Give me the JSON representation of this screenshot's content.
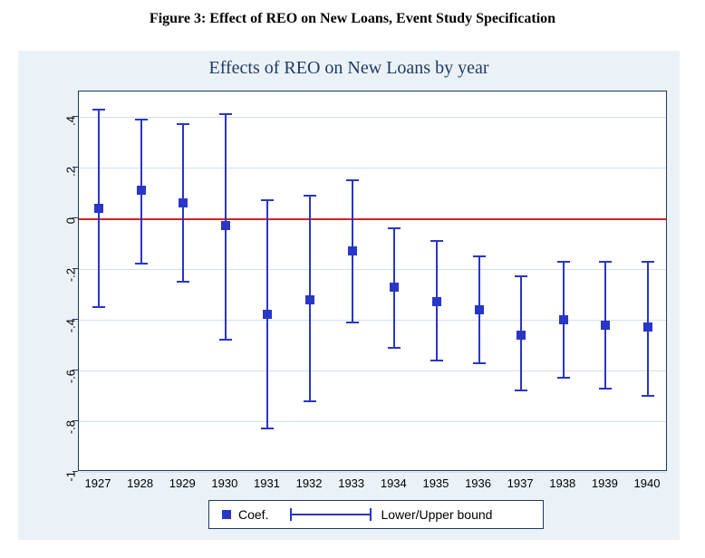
{
  "figure_caption": "Figure 3: Effect of REO on New Loans, Event Study Specification",
  "chart": {
    "type": "event-study-errorbar",
    "title": "Effects of REO on New Loans by year",
    "title_fontsize": 20,
    "title_color": "#1f3a5f",
    "background_color": "#eaf2f8",
    "plot_background_color": "#ffffff",
    "axis_color": "#1f3a5f",
    "grid_color": "#d2e0ec",
    "zero_line_color": "#d02424",
    "ylim": [
      -1.0,
      0.5
    ],
    "yticks": [
      -1.0,
      -0.8,
      -0.6,
      -0.4,
      -0.2,
      0.0,
      0.2,
      0.4
    ],
    "ytick_labels": [
      "-1",
      "-.8",
      "-.6",
      "-.4",
      "-.2",
      "0",
      ".2",
      ".4"
    ],
    "years": [
      1927,
      1928,
      1929,
      1930,
      1931,
      1932,
      1933,
      1934,
      1935,
      1936,
      1937,
      1938,
      1939,
      1940
    ],
    "coef": [
      0.04,
      0.11,
      0.06,
      -0.03,
      -0.38,
      -0.32,
      -0.13,
      -0.27,
      -0.33,
      -0.36,
      -0.46,
      -0.4,
      -0.42,
      -0.43
    ],
    "lower": [
      -0.35,
      -0.18,
      -0.25,
      -0.48,
      -0.83,
      -0.72,
      -0.41,
      -0.51,
      -0.56,
      -0.57,
      -0.68,
      -0.63,
      -0.67,
      -0.7
    ],
    "upper": [
      0.43,
      0.39,
      0.37,
      0.41,
      0.07,
      0.09,
      0.15,
      -0.04,
      -0.09,
      -0.15,
      -0.23,
      -0.17,
      -0.17,
      -0.17
    ],
    "marker_color": "#2936c7",
    "marker_size": 10,
    "ci_line_width": 2,
    "ci_cap_width": 14,
    "legend": {
      "coef_label": "Coef.",
      "ci_label": "Lower/Upper bound"
    }
  }
}
